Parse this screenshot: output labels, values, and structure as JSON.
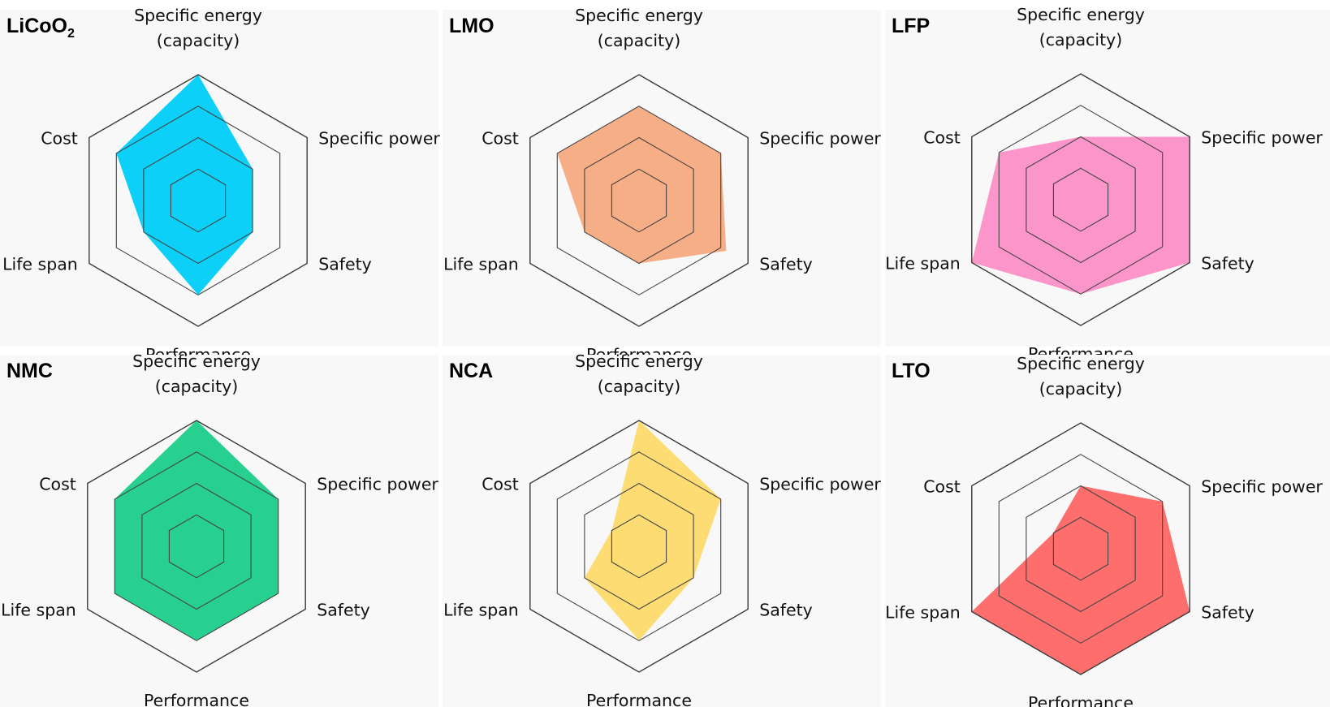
{
  "figure": {
    "background": "#ffffff",
    "panel_background": "#f8f8f8"
  },
  "chart_data": [
    {
      "type": "radar",
      "title": "LiCoO2",
      "title_main": "LiCoO",
      "title_subscript": "2",
      "axes": [
        "Specific energy (capacity)",
        "Specific power",
        "Safety",
        "Performance",
        "Life span",
        "Cost"
      ],
      "axis_label_lines": [
        [
          "Specific energy",
          "(capacity)"
        ],
        [
          "Specific power"
        ],
        [
          "Safety"
        ],
        [
          "Performance"
        ],
        [
          "Life span"
        ],
        [
          "Cost"
        ]
      ],
      "levels": 4,
      "range": [
        0,
        4
      ],
      "values": [
        4,
        2,
        2,
        3,
        2,
        3
      ],
      "color": "#00cdf8"
    },
    {
      "type": "radar",
      "title": "LMO",
      "axes": [
        "Specific energy (capacity)",
        "Specific power",
        "Safety",
        "Performance",
        "Life span",
        "Cost"
      ],
      "axis_label_lines": [
        [
          "Specific energy",
          "(capacity)"
        ],
        [
          "Specific power"
        ],
        [
          "Safety"
        ],
        [
          "Performance"
        ],
        [
          "Life span"
        ],
        [
          "Cost"
        ]
      ],
      "levels": 4,
      "range": [
        0,
        4
      ],
      "values": [
        3,
        3,
        3.2,
        2,
        2,
        3
      ],
      "color": "#f5aa80"
    },
    {
      "type": "radar",
      "title": "LFP",
      "axes": [
        "Specific energy (capacity)",
        "Specific power",
        "Safety",
        "Performance",
        "Life span",
        "Cost"
      ],
      "axis_label_lines": [
        [
          "Specific energy",
          "(capacity)"
        ],
        [
          "Specific power"
        ],
        [
          "Safety"
        ],
        [
          "Performance"
        ],
        [
          "Life span"
        ],
        [
          "Cost"
        ]
      ],
      "levels": 4,
      "range": [
        0,
        4
      ],
      "values": [
        2,
        4,
        4,
        3,
        4,
        3
      ],
      "color": "#fc8fc6"
    },
    {
      "type": "radar",
      "title": "NMC",
      "axes": [
        "Specific energy (capacity)",
        "Specific power",
        "Safety",
        "Performance",
        "Life span",
        "Cost"
      ],
      "axis_label_lines": [
        [
          "Specific energy",
          "(capacity)"
        ],
        [
          "Specific power"
        ],
        [
          "Safety"
        ],
        [
          "Performance"
        ],
        [
          "Life span"
        ],
        [
          "Cost"
        ]
      ],
      "levels": 4,
      "range": [
        0,
        4
      ],
      "values": [
        4,
        3,
        3,
        3,
        3,
        3
      ],
      "color": "#1ccd8a"
    },
    {
      "type": "radar",
      "title": "NCA",
      "axes": [
        "Specific energy (capacity)",
        "Specific power",
        "Safety",
        "Performance",
        "Life span",
        "Cost"
      ],
      "axis_label_lines": [
        [
          "Specific energy",
          "(capacity)"
        ],
        [
          "Specific power"
        ],
        [
          "Safety"
        ],
        [
          "Performance"
        ],
        [
          "Life span"
        ],
        [
          "Cost"
        ]
      ],
      "levels": 4,
      "range": [
        0,
        4
      ],
      "values": [
        4,
        3,
        2,
        3,
        2,
        1
      ],
      "color": "#fcda6c"
    },
    {
      "type": "radar",
      "title": "LTO",
      "axes": [
        "Specific energy (capacity)",
        "Specific power",
        "Safety",
        "Performance",
        "Life span",
        "Cost"
      ],
      "axis_label_lines": [
        [
          "Specific energy",
          "(capacity)"
        ],
        [
          "Specific power"
        ],
        [
          "Safety"
        ],
        [
          "Performance"
        ],
        [
          "Life span"
        ],
        [
          "Cost"
        ]
      ],
      "levels": 4,
      "range": [
        0,
        4
      ],
      "values": [
        2,
        3,
        4,
        4,
        4,
        1
      ],
      "color": "#fd6664"
    }
  ]
}
